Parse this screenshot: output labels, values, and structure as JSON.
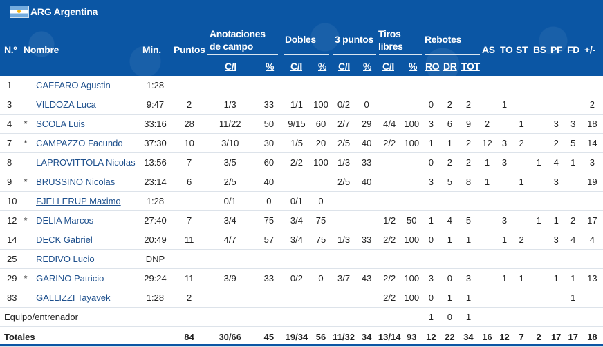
{
  "team": {
    "code": "ARG",
    "name": "Argentina",
    "label": "ARG Argentina"
  },
  "header": {
    "num": "N.º",
    "name": "Nombre",
    "min": "Min.",
    "pts": "Puntos",
    "fg": "Anotaciones de campo",
    "twos": "Dobles",
    "threes": "3 puntos",
    "ft": "Tiros libres",
    "reb": "Rebotes",
    "ci": "C/I",
    "pct": "%",
    "ro": "RO",
    "dr": "DR",
    "tot": "TOT",
    "as": "AS",
    "to": "TO",
    "st": "ST",
    "bs": "BS",
    "pf": "PF",
    "fd": "FD",
    "pm": "+/-"
  },
  "rows": [
    [
      "1",
      "",
      "CAFFARO Agustin",
      "1:28",
      "",
      "",
      "",
      "",
      "",
      "",
      "",
      "",
      "",
      "",
      "",
      "",
      "",
      "",
      "",
      "",
      "",
      "",
      ""
    ],
    [
      "3",
      "",
      "VILDOZA Luca",
      "9:47",
      "2",
      "1/3",
      "33",
      "1/1",
      "100",
      "0/2",
      "0",
      "",
      "",
      "0",
      "2",
      "2",
      "",
      "1",
      "",
      "",
      "",
      "",
      "2"
    ],
    [
      "4",
      "*",
      "SCOLA Luis",
      "33:16",
      "28",
      "11/22",
      "50",
      "9/15",
      "60",
      "2/7",
      "29",
      "4/4",
      "100",
      "3",
      "6",
      "9",
      "2",
      "",
      "1",
      "",
      "3",
      "3",
      "18"
    ],
    [
      "7",
      "*",
      "CAMPAZZO Facundo",
      "37:30",
      "10",
      "3/10",
      "30",
      "1/5",
      "20",
      "2/5",
      "40",
      "2/2",
      "100",
      "1",
      "1",
      "2",
      "12",
      "3",
      "2",
      "",
      "2",
      "5",
      "14"
    ],
    [
      "8",
      "",
      "LAPROVITTOLA Nicolas",
      "13:56",
      "7",
      "3/5",
      "60",
      "2/2",
      "100",
      "1/3",
      "33",
      "",
      "",
      "0",
      "2",
      "2",
      "1",
      "3",
      "",
      "1",
      "4",
      "1",
      "3"
    ],
    [
      "9",
      "*",
      "BRUSSINO Nicolas",
      "23:14",
      "6",
      "2/5",
      "40",
      "",
      "",
      "2/5",
      "40",
      "",
      "",
      "3",
      "5",
      "8",
      "1",
      "",
      "1",
      "",
      "3",
      "",
      "19"
    ],
    [
      "10",
      "",
      "FJELLERUP Maximo",
      "1:28",
      "",
      "0/1",
      "0",
      "0/1",
      "0",
      "",
      "",
      "",
      "",
      "",
      "",
      "",
      "",
      "",
      "",
      "",
      "",
      "",
      ""
    ],
    [
      "12",
      "*",
      "DELIA Marcos",
      "27:40",
      "7",
      "3/4",
      "75",
      "3/4",
      "75",
      "",
      "",
      "1/2",
      "50",
      "1",
      "4",
      "5",
      "",
      "3",
      "",
      "1",
      "1",
      "2",
      "17"
    ],
    [
      "14",
      "",
      "DECK Gabriel",
      "20:49",
      "11",
      "4/7",
      "57",
      "3/4",
      "75",
      "1/3",
      "33",
      "2/2",
      "100",
      "0",
      "1",
      "1",
      "",
      "1",
      "2",
      "",
      "3",
      "4",
      "4"
    ],
    [
      "25",
      "",
      "REDIVO Lucio",
      "DNP",
      "",
      "",
      "",
      "",
      "",
      "",
      "",
      "",
      "",
      "",
      "",
      "",
      "",
      "",
      "",
      "",
      "",
      "",
      ""
    ],
    [
      "29",
      "*",
      "GARINO Patricio",
      "29:24",
      "11",
      "3/9",
      "33",
      "0/2",
      "0",
      "3/7",
      "43",
      "2/2",
      "100",
      "3",
      "0",
      "3",
      "",
      "1",
      "1",
      "",
      "1",
      "1",
      "13"
    ],
    [
      "83",
      "",
      "GALLIZZI Tayavek",
      "1:28",
      "2",
      "",
      "",
      "",
      "",
      "",
      "",
      "2/2",
      "100",
      "0",
      "1",
      "1",
      "",
      "",
      "",
      "",
      "",
      "1",
      ""
    ]
  ],
  "team_row": {
    "label": "Equipo/entrenador",
    "ro": "1",
    "dr": "0",
    "tot": "1"
  },
  "totals": {
    "label": "Totales",
    "vals": [
      "84",
      "30/66",
      "45",
      "19/34",
      "56",
      "11/32",
      "34",
      "13/14",
      "93",
      "12",
      "22",
      "34",
      "16",
      "12",
      "7",
      "2",
      "17",
      "17",
      "18"
    ]
  },
  "colors": {
    "header_bg": "#0b56a4",
    "player_link": "#1d4f8c"
  }
}
